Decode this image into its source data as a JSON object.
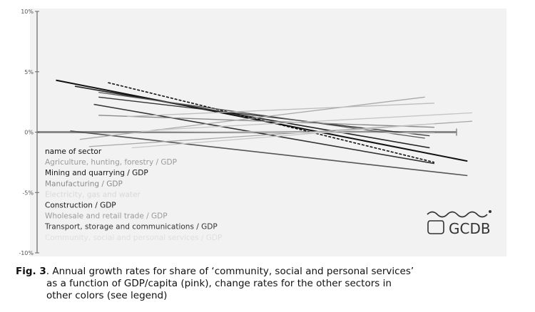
{
  "caption": {
    "label": "Fig. 3",
    "line1": ". Annual growth rates for share of ‘community, social and personal services’",
    "line2": "as a function of GDP/capita (pink), change rates for the other sectors in",
    "line3": "other colors (see legend)"
  },
  "logo": {
    "text": "GCDB"
  },
  "chart_data": {
    "type": "line",
    "title": "",
    "xlabel": "",
    "ylabel": "",
    "ylim": [
      -10,
      10
    ],
    "y_ticks": [
      {
        "value": 10,
        "label": "10%"
      },
      {
        "value": 5,
        "label": "5%"
      },
      {
        "value": 0,
        "label": "0%"
      },
      {
        "value": -5,
        "label": "-5%"
      },
      {
        "value": -10,
        "label": "-10%"
      }
    ],
    "x_unit": "GDP/capita (relative position)",
    "legend_title": "name of sector",
    "legend": [
      {
        "name": "Agriculture, hunting, forestry / GDP",
        "color": "#9a9a9a"
      },
      {
        "name": "Mining and quarrying / GDP",
        "color": "#1a1a1a"
      },
      {
        "name": "Manufacturing / GDP",
        "color": "#8a8a8a"
      },
      {
        "name": "Electricity, gas and water",
        "color": "#d8d8d8"
      },
      {
        "name": "Construction / GDP",
        "color": "#1a1a1a"
      },
      {
        "name": "Wholesale and retail trade / GDP",
        "color": "#9a9a9a"
      },
      {
        "name": "Transport, storage and communications / GDP",
        "color": "#333333"
      },
      {
        "name": "Community, social and personal services / GDP",
        "color": "#e0e0e0"
      }
    ],
    "series": [
      {
        "x": [
          0.04,
          0.91
        ],
        "values": [
          4.3,
          -2.4
        ],
        "color": "#111111",
        "width": 2,
        "dash": false
      },
      {
        "x": [
          0.08,
          0.83
        ],
        "values": [
          3.8,
          -1.3
        ],
        "color": "#222222",
        "width": 1.6,
        "dash": false
      },
      {
        "x": [
          0.15,
          0.84
        ],
        "values": [
          4.1,
          -2.5
        ],
        "color": "#111111",
        "width": 1.6,
        "dash": true
      },
      {
        "x": [
          0.12,
          0.84
        ],
        "values": [
          2.3,
          -2.6
        ],
        "color": "#333333",
        "width": 1.6,
        "dash": false
      },
      {
        "x": [
          0.13,
          0.83
        ],
        "values": [
          2.9,
          -0.3
        ],
        "color": "#333333",
        "width": 1.3,
        "dash": false
      },
      {
        "x": [
          0.07,
          0.91
        ],
        "values": [
          0.1,
          -3.6
        ],
        "color": "#555555",
        "width": 1.6,
        "dash": false
      },
      {
        "x": [
          0.13,
          0.82
        ],
        "values": [
          3.3,
          -0.5
        ],
        "color": "#555555",
        "width": 1.3,
        "dash": false
      },
      {
        "x": [
          0.13,
          0.84
        ],
        "values": [
          1.4,
          0.4
        ],
        "color": "#888888",
        "width": 1.3,
        "dash": false
      },
      {
        "x": [
          0.09,
          0.82
        ],
        "values": [
          -0.6,
          2.9
        ],
        "color": "#a9a9a9",
        "width": 1.3,
        "dash": false
      },
      {
        "x": [
          0.11,
          0.92
        ],
        "values": [
          -1.2,
          0.9
        ],
        "color": "#a9a9a9",
        "width": 1.3,
        "dash": false
      },
      {
        "x": [
          0.26,
          0.92
        ],
        "values": [
          0.2,
          1.6
        ],
        "color": "#c4c4c4",
        "width": 1.3,
        "dash": false
      },
      {
        "x": [
          0.19,
          0.84
        ],
        "values": [
          1.3,
          2.4
        ],
        "color": "#bdbdbd",
        "width": 1.3,
        "dash": false
      },
      {
        "x": [
          0.2,
          0.84
        ],
        "values": [
          -1.3,
          0.7
        ],
        "color": "#c8c8c8",
        "width": 1.3,
        "dash": false
      },
      {
        "x": [
          0.22,
          0.84
        ],
        "values": [
          0.1,
          -0.1
        ],
        "color": "#dcdcdc",
        "width": 1.3,
        "dash": false
      }
    ]
  }
}
